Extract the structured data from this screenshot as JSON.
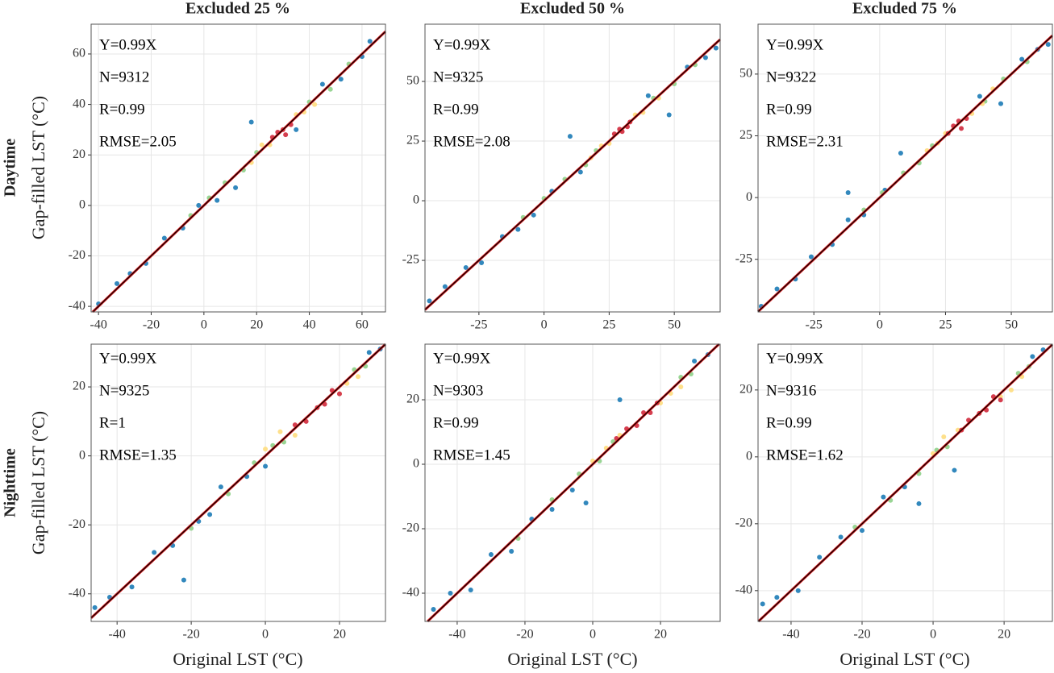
{
  "column_titles": [
    "Excluded 25 %",
    "Excluded 50 %",
    "Excluded 75 %"
  ],
  "row_labels": [
    "Daytime",
    "Nighttime"
  ],
  "x_label": "Original LST (°C)",
  "y_label": "Gap-filled LST (°C)",
  "chart_data": [
    {
      "type": "scatter",
      "annotations": [
        "Y=0.99X",
        "N=9312",
        "R=0.99",
        "RMSE=2.05"
      ],
      "xlim": [
        -42.8,
        68.9
      ],
      "ylim": [
        -42.2,
        71.8
      ],
      "xticks": [
        -40,
        -20,
        0,
        20,
        40,
        60
      ],
      "yticks": [
        -40,
        -20,
        0,
        20,
        40,
        60
      ],
      "grid": true,
      "series": [
        {
          "color": "#3288bd",
          "x": [
            -40,
            -33,
            -28,
            -22,
            -15,
            -8,
            -2,
            5,
            12,
            18,
            35,
            45,
            52,
            60,
            63
          ],
          "values": [
            -39,
            -31,
            -27,
            -23,
            -13,
            -9,
            0,
            2,
            7,
            33,
            30,
            48,
            50,
            59,
            65
          ]
        },
        {
          "color": "#99d594",
          "x": [
            -5,
            2,
            8,
            15,
            20,
            40,
            48,
            55
          ],
          "values": [
            -4,
            3,
            9,
            14,
            21,
            41,
            46,
            56
          ]
        },
        {
          "color": "#fee08b",
          "x": [
            18,
            22,
            25,
            35,
            38,
            42
          ],
          "values": [
            17,
            24,
            24,
            36,
            37,
            40
          ]
        },
        {
          "color": "#d53e4f",
          "x": [
            26,
            28,
            30,
            31,
            33
          ],
          "values": [
            27,
            29,
            30,
            28,
            32
          ]
        }
      ]
    },
    {
      "type": "scatter",
      "annotations": [
        "Y=0.99X",
        "N=9325",
        "R=0.99",
        "RMSE=2.08"
      ],
      "xlim": [
        -45.7,
        67.6
      ],
      "ylim": [
        -46.6,
        74
      ],
      "xticks": [
        -25,
        0,
        25,
        50
      ],
      "yticks": [
        -25,
        0,
        25,
        50
      ],
      "grid": true,
      "series": [
        {
          "color": "#3288bd",
          "x": [
            -44,
            -38,
            -30,
            -24,
            -16,
            -10,
            -4,
            3,
            10,
            14,
            40,
            48,
            55,
            62,
            66
          ],
          "values": [
            -42,
            -36,
            -28,
            -26,
            -15,
            -12,
            -6,
            4,
            27,
            12,
            44,
            36,
            56,
            60,
            64
          ]
        },
        {
          "color": "#99d594",
          "x": [
            -8,
            0,
            8,
            16,
            20,
            42,
            50,
            58
          ],
          "values": [
            -7,
            1,
            9,
            15,
            21,
            43,
            49,
            57
          ]
        },
        {
          "color": "#fee08b",
          "x": [
            18,
            22,
            25,
            35,
            38,
            44
          ],
          "values": [
            18,
            23,
            24,
            36,
            37,
            43
          ]
        },
        {
          "color": "#d53e4f",
          "x": [
            27,
            29,
            30,
            32,
            33
          ],
          "values": [
            28,
            30,
            29,
            31,
            33
          ]
        }
      ]
    },
    {
      "type": "scatter",
      "annotations": [
        "Y=0.99X",
        "N=9322",
        "R=0.99",
        "RMSE=2.31"
      ],
      "xlim": [
        -46.2,
        65.6
      ],
      "ylim": [
        -46.3,
        70.2
      ],
      "xticks": [
        -25,
        0,
        25,
        50
      ],
      "yticks": [
        -25,
        0,
        25,
        50
      ],
      "grid": true,
      "series": [
        {
          "color": "#3288bd",
          "x": [
            -45,
            -39,
            -32,
            -26,
            -18,
            -12,
            -6,
            2,
            8,
            -12,
            38,
            46,
            54,
            60,
            64
          ],
          "values": [
            -44,
            -37,
            -33,
            -24,
            -19,
            -9,
            -7,
            3,
            18,
            2,
            41,
            38,
            56,
            60,
            62
          ]
        },
        {
          "color": "#99d594",
          "x": [
            -6,
            1,
            9,
            15,
            20,
            40,
            47,
            56
          ],
          "values": [
            -5,
            2,
            10,
            14,
            21,
            39,
            48,
            55
          ]
        },
        {
          "color": "#fee08b",
          "x": [
            18,
            22,
            25,
            35,
            39,
            43
          ],
          "values": [
            19,
            22,
            26,
            34,
            38,
            44
          ]
        },
        {
          "color": "#d53e4f",
          "x": [
            26,
            28,
            30,
            31,
            33
          ],
          "values": [
            26,
            29,
            31,
            28,
            32
          ]
        }
      ]
    },
    {
      "type": "scatter",
      "annotations": [
        "Y=0.99X",
        "N=9325",
        "R=1",
        "RMSE=1.35"
      ],
      "xlim": [
        -47,
        32.4
      ],
      "ylim": [
        -48,
        32.4
      ],
      "xticks": [
        -40,
        -20,
        0,
        20
      ],
      "yticks": [
        -40,
        -20,
        0,
        20
      ],
      "grid": true,
      "series": [
        {
          "color": "#3288bd",
          "x": [
            -46,
            -42,
            -36,
            -30,
            -25,
            -18,
            -12,
            -5,
            -22,
            -15,
            0,
            28,
            31
          ],
          "values": [
            -44,
            -41,
            -38,
            -28,
            -26,
            -19,
            -9,
            -6,
            -36,
            -17,
            -3,
            30,
            31
          ]
        },
        {
          "color": "#99d594",
          "x": [
            -20,
            -10,
            -3,
            2,
            5,
            24,
            27
          ],
          "values": [
            -21,
            -11,
            -2,
            3,
            4,
            25,
            26
          ]
        },
        {
          "color": "#fee08b",
          "x": [
            0,
            4,
            8,
            20,
            22,
            25
          ],
          "values": [
            2,
            7,
            6,
            18,
            21,
            23
          ]
        },
        {
          "color": "#d53e4f",
          "x": [
            8,
            11,
            14,
            16,
            18,
            20
          ],
          "values": [
            9,
            10,
            14,
            15,
            19,
            18
          ]
        }
      ]
    },
    {
      "type": "scatter",
      "annotations": [
        "Y=0.99X",
        "N=9303",
        "R=0.99",
        "RMSE=1.45"
      ],
      "xlim": [
        -49.5,
        37.6
      ],
      "ylim": [
        -48.75,
        37.25
      ],
      "xticks": [
        -40,
        -20,
        0,
        20
      ],
      "yticks": [
        -40,
        -20,
        0,
        20
      ],
      "grid": true,
      "series": [
        {
          "color": "#3288bd",
          "x": [
            -47,
            -42,
            -36,
            -30,
            -24,
            -18,
            -12,
            -6,
            -2,
            8,
            30,
            34
          ],
          "values": [
            -45,
            -40,
            -39,
            -28,
            -27,
            -17,
            -14,
            -8,
            -12,
            20,
            32,
            34
          ]
        },
        {
          "color": "#99d594",
          "x": [
            -22,
            -12,
            -4,
            2,
            6,
            26,
            29
          ],
          "values": [
            -23,
            -11,
            -3,
            1,
            7,
            27,
            28
          ]
        },
        {
          "color": "#fee08b",
          "x": [
            0,
            4,
            8,
            20,
            23,
            26
          ],
          "values": [
            1,
            5,
            9,
            19,
            22,
            24
          ]
        },
        {
          "color": "#d53e4f",
          "x": [
            7,
            10,
            13,
            15,
            17,
            19
          ],
          "values": [
            8,
            11,
            12,
            16,
            16,
            19
          ]
        }
      ]
    },
    {
      "type": "scatter",
      "annotations": [
        "Y=0.99X",
        "N=9316",
        "R=0.99",
        "RMSE=1.62"
      ],
      "xlim": [
        -49.3,
        33.6
      ],
      "ylim": [
        -49.2,
        33.7
      ],
      "xticks": [
        -40,
        -20,
        0,
        20
      ],
      "yticks": [
        -40,
        -20,
        0,
        20
      ],
      "grid": true,
      "series": [
        {
          "color": "#3288bd",
          "x": [
            -48,
            -44,
            -38,
            -32,
            -26,
            -20,
            -14,
            -8,
            -4,
            6,
            28,
            31
          ],
          "values": [
            -44,
            -42,
            -40,
            -30,
            -24,
            -22,
            -12,
            -9,
            -14,
            -4,
            30,
            32
          ]
        },
        {
          "color": "#99d594",
          "x": [
            -22,
            -12,
            -4,
            1,
            4,
            24,
            27
          ],
          "values": [
            -21,
            -13,
            -5,
            2,
            3,
            25,
            27
          ]
        },
        {
          "color": "#fee08b",
          "x": [
            0,
            3,
            7,
            19,
            22,
            25
          ],
          "values": [
            1,
            6,
            8,
            18,
            20,
            24
          ]
        },
        {
          "color": "#d53e4f",
          "x": [
            8,
            10,
            13,
            15,
            17,
            19
          ],
          "values": [
            8,
            11,
            13,
            14,
            18,
            17
          ]
        }
      ]
    }
  ]
}
